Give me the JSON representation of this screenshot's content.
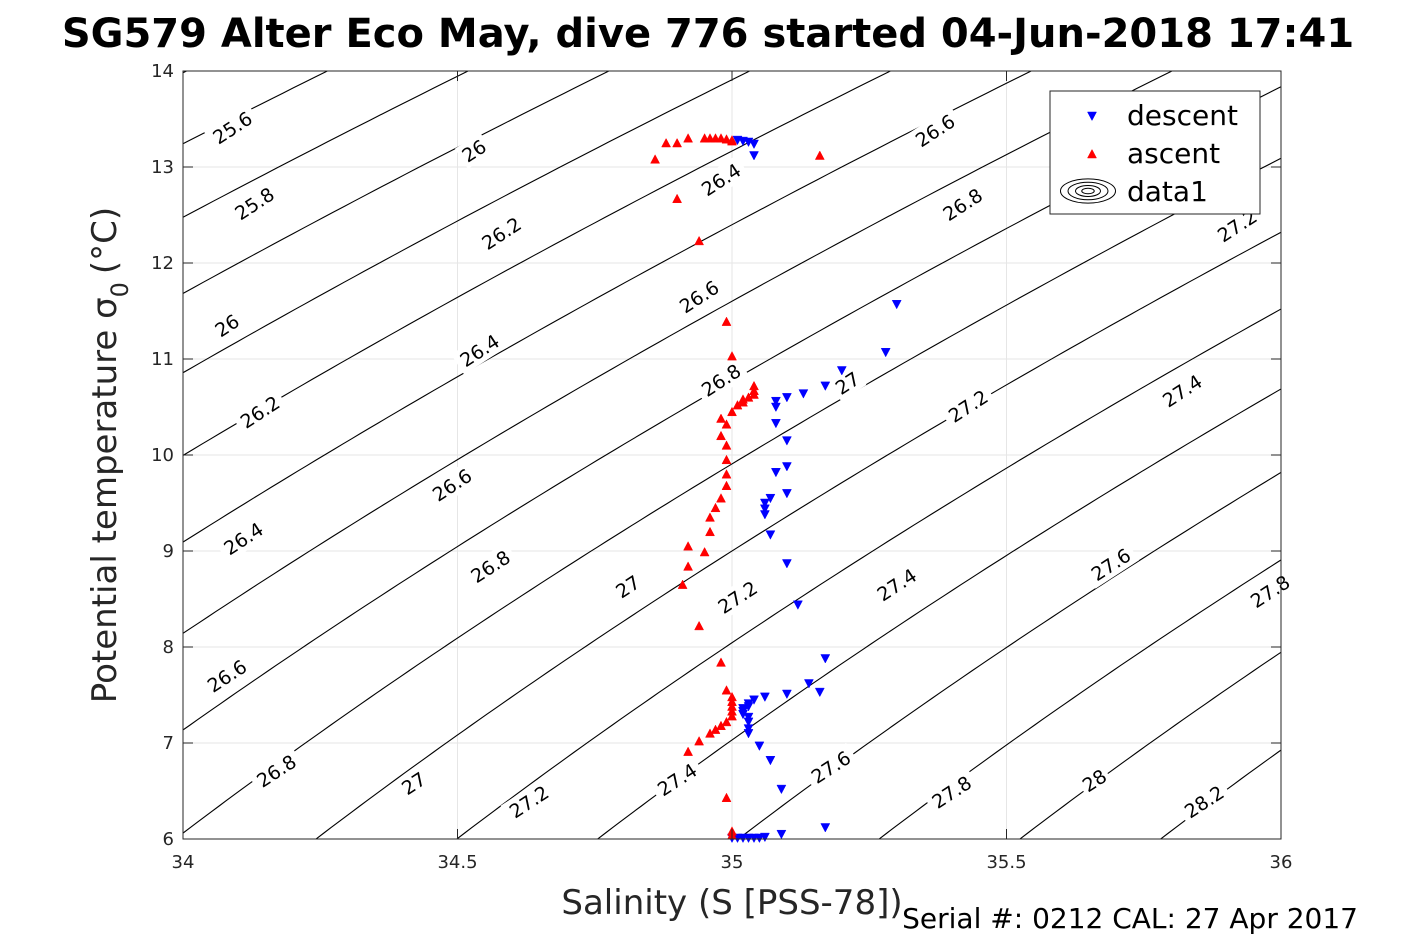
{
  "chart_data": {
    "type": "scatter",
    "title": "SG579 Alter Eco May, dive 776 started 04-Jun-2018 17:41",
    "xlabel": "Salinity (S [PSS-78])",
    "ylabel": "Potential temperature σ",
    "ylabel_sub": "0",
    "ylabel_unit": "(°C)",
    "footer": "Serial #: 0212  CAL: 27 Apr 2017",
    "xlim": [
      34,
      36
    ],
    "ylim": [
      6,
      14
    ],
    "grid": true,
    "legend_position": "top-right",
    "xticks": [
      "34",
      "34.5",
      "35",
      "35.5",
      "36"
    ],
    "yticks": [
      "6",
      "7",
      "8",
      "9",
      "10",
      "11",
      "12",
      "13",
      "14"
    ],
    "legend": [
      {
        "label": "descent",
        "marker": "triangle-down",
        "color": "#0000ff"
      },
      {
        "label": "ascent",
        "marker": "triangle-up",
        "color": "#ff0000"
      },
      {
        "label": "data1",
        "marker": "contour",
        "color": "#000000"
      }
    ],
    "contour_levels": [
      "25.6",
      "25.8",
      "26",
      "26.2",
      "26.4",
      "26.6",
      "26.8",
      "27",
      "27.2",
      "27.4",
      "27.6",
      "27.8",
      "28",
      "28.2"
    ],
    "contour_labels": [
      {
        "text": "25.6",
        "s": 34.09,
        "t": 13.41
      },
      {
        "text": "25.8",
        "s": 34.13,
        "t": 12.62
      },
      {
        "text": "26",
        "s": 34.08,
        "t": 11.35
      },
      {
        "text": "26.2",
        "s": 34.14,
        "t": 10.45
      },
      {
        "text": "26.4",
        "s": 34.11,
        "t": 9.13
      },
      {
        "text": "26.6",
        "s": 34.08,
        "t": 7.7
      },
      {
        "text": "26.8",
        "s": 34.17,
        "t": 6.71
      },
      {
        "text": "26",
        "s": 34.53,
        "t": 13.17
      },
      {
        "text": "26.2",
        "s": 34.58,
        "t": 12.31
      },
      {
        "text": "26.4",
        "s": 34.54,
        "t": 11.09
      },
      {
        "text": "26.6",
        "s": 34.49,
        "t": 9.69
      },
      {
        "text": "26.8",
        "s": 34.56,
        "t": 8.84
      },
      {
        "text": "27",
        "s": 34.42,
        "t": 6.58
      },
      {
        "text": "27.2",
        "s": 34.63,
        "t": 6.39
      },
      {
        "text": "26.4",
        "s": 34.98,
        "t": 12.87
      },
      {
        "text": "26.6",
        "s": 34.94,
        "t": 11.65
      },
      {
        "text": "26.8",
        "s": 34.98,
        "t": 10.78
      },
      {
        "text": "27",
        "s": 34.81,
        "t": 8.63
      },
      {
        "text": "27.2",
        "s": 35.01,
        "t": 8.52
      },
      {
        "text": "27.4",
        "s": 34.9,
        "t": 6.62
      },
      {
        "text": "26.6",
        "s": 35.37,
        "t": 13.38
      },
      {
        "text": "26.8",
        "s": 35.42,
        "t": 12.61
      },
      {
        "text": "27",
        "s": 35.21,
        "t": 10.75
      },
      {
        "text": "27.2",
        "s": 35.43,
        "t": 10.51
      },
      {
        "text": "27.4",
        "s": 35.3,
        "t": 8.65
      },
      {
        "text": "27.6",
        "s": 35.18,
        "t": 6.75
      },
      {
        "text": "27.2",
        "s": 35.92,
        "t": 12.39
      },
      {
        "text": "27.4",
        "s": 35.82,
        "t": 10.67
      },
      {
        "text": "27.6",
        "s": 35.69,
        "t": 8.86
      },
      {
        "text": "27.8",
        "s": 35.98,
        "t": 8.58
      },
      {
        "text": "27.8",
        "s": 35.4,
        "t": 6.49
      },
      {
        "text": "28",
        "s": 35.66,
        "t": 6.61
      },
      {
        "text": "28.2",
        "s": 35.86,
        "t": 6.39
      }
    ],
    "series": [
      {
        "name": "descent",
        "marker": "triangle-down",
        "color": "#0000ff",
        "points": [
          [
            35.3,
            11.57
          ],
          [
            35.28,
            11.07
          ],
          [
            35.2,
            10.88
          ],
          [
            35.17,
            10.72
          ],
          [
            35.13,
            10.64
          ],
          [
            35.1,
            10.6
          ],
          [
            35.08,
            10.56
          ],
          [
            35.08,
            10.5
          ],
          [
            35.08,
            10.33
          ],
          [
            35.1,
            10.15
          ],
          [
            35.1,
            9.88
          ],
          [
            35.08,
            9.82
          ],
          [
            35.1,
            9.6
          ],
          [
            35.07,
            9.55
          ],
          [
            35.06,
            9.5
          ],
          [
            35.06,
            9.44
          ],
          [
            35.06,
            9.38
          ],
          [
            35.07,
            9.17
          ],
          [
            35.1,
            8.87
          ],
          [
            35.12,
            8.44
          ],
          [
            35.17,
            7.88
          ],
          [
            35.14,
            7.62
          ],
          [
            35.16,
            7.53
          ],
          [
            35.1,
            7.51
          ],
          [
            35.06,
            7.48
          ],
          [
            35.04,
            7.45
          ],
          [
            35.03,
            7.41
          ],
          [
            35.03,
            7.38
          ],
          [
            35.02,
            7.36
          ],
          [
            35.02,
            7.33
          ],
          [
            35.02,
            7.3
          ],
          [
            35.03,
            7.27
          ],
          [
            35.03,
            7.22
          ],
          [
            35.03,
            7.15
          ],
          [
            35.03,
            7.1
          ],
          [
            35.05,
            6.97
          ],
          [
            35.07,
            6.82
          ],
          [
            35.09,
            6.52
          ],
          [
            35.17,
            6.12
          ],
          [
            35.09,
            6.05
          ],
          [
            35.06,
            6.02
          ],
          [
            35.05,
            6.01
          ],
          [
            35.04,
            6.01
          ],
          [
            35.03,
            6.01
          ],
          [
            35.02,
            6.01
          ],
          [
            35.01,
            6.01
          ],
          [
            35.0,
            6.01
          ],
          [
            35.04,
            13.24
          ],
          [
            35.03,
            13.26
          ],
          [
            35.02,
            13.27
          ],
          [
            35.01,
            13.28
          ],
          [
            35.04,
            13.12
          ]
        ]
      },
      {
        "name": "ascent",
        "marker": "triangle-up",
        "color": "#ff0000",
        "points": [
          [
            35.0,
            6.04
          ],
          [
            35.0,
            6.08
          ],
          [
            34.99,
            6.43
          ],
          [
            34.92,
            6.91
          ],
          [
            34.94,
            7.02
          ],
          [
            34.96,
            7.1
          ],
          [
            34.97,
            7.14
          ],
          [
            34.98,
            7.18
          ],
          [
            34.99,
            7.22
          ],
          [
            35.0,
            7.28
          ],
          [
            35.0,
            7.33
          ],
          [
            35.0,
            7.38
          ],
          [
            35.0,
            7.43
          ],
          [
            35.0,
            7.48
          ],
          [
            34.99,
            7.55
          ],
          [
            34.98,
            7.84
          ],
          [
            34.94,
            8.22
          ],
          [
            34.91,
            8.65
          ],
          [
            34.92,
            8.84
          ],
          [
            34.92,
            9.05
          ],
          [
            34.95,
            8.99
          ],
          [
            34.96,
            9.2
          ],
          [
            34.96,
            9.35
          ],
          [
            34.97,
            9.45
          ],
          [
            34.98,
            9.55
          ],
          [
            34.99,
            9.68
          ],
          [
            34.99,
            9.8
          ],
          [
            34.99,
            9.95
          ],
          [
            34.99,
            10.1
          ],
          [
            34.98,
            10.2
          ],
          [
            34.99,
            10.32
          ],
          [
            34.98,
            10.38
          ],
          [
            35.0,
            10.45
          ],
          [
            35.01,
            10.52
          ],
          [
            35.02,
            10.55
          ],
          [
            35.02,
            10.58
          ],
          [
            35.03,
            10.6
          ],
          [
            35.04,
            10.63
          ],
          [
            35.04,
            10.67
          ],
          [
            35.04,
            10.72
          ],
          [
            35.0,
            11.03
          ],
          [
            34.99,
            11.39
          ],
          [
            34.94,
            12.23
          ],
          [
            34.9,
            12.67
          ],
          [
            34.86,
            13.08
          ],
          [
            34.88,
            13.25
          ],
          [
            34.9,
            13.25
          ],
          [
            34.92,
            13.3
          ],
          [
            34.95,
            13.3
          ],
          [
            34.96,
            13.3
          ],
          [
            34.97,
            13.3
          ],
          [
            34.98,
            13.3
          ],
          [
            34.99,
            13.29
          ],
          [
            35.0,
            13.28
          ],
          [
            35.0,
            13.27
          ],
          [
            35.16,
            13.12
          ]
        ]
      }
    ]
  }
}
